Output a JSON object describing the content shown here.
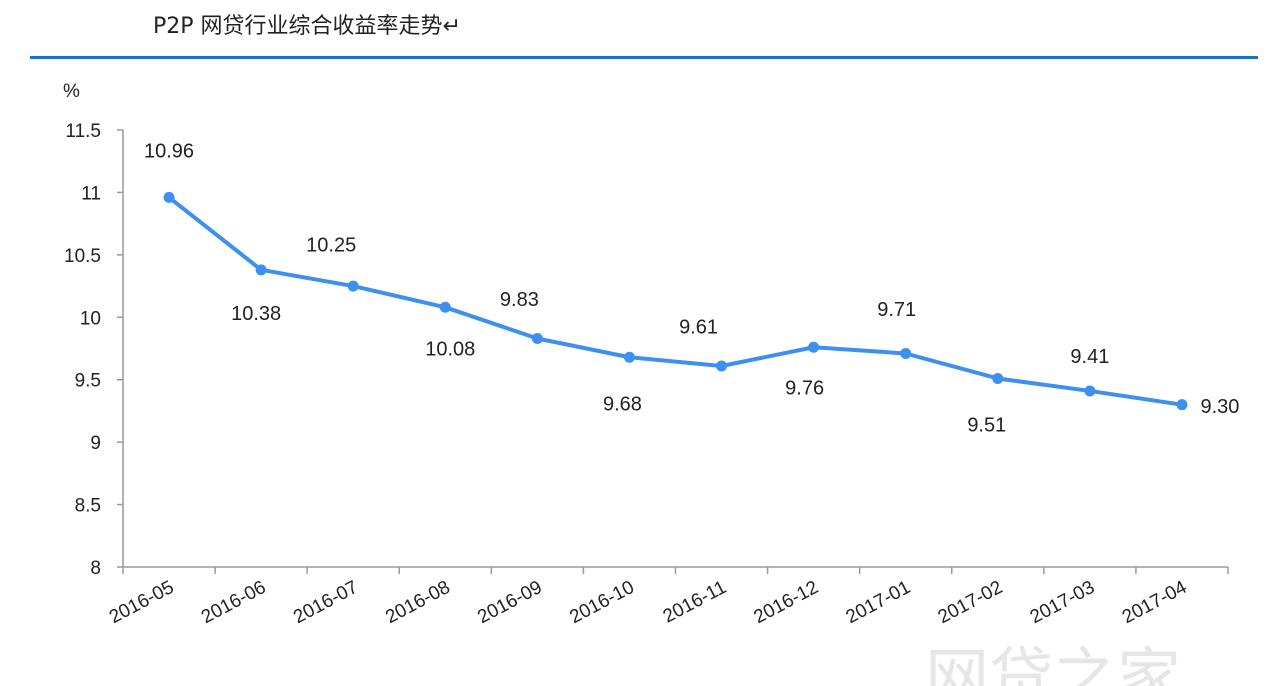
{
  "header": {
    "title": "P2P 网贷行业综合收益率走势↵"
  },
  "watermark": "网贷之家",
  "chart_data": {
    "type": "line",
    "title": "P2P 网贷行业综合收益率走势",
    "ylabel": "%",
    "xlabel": "",
    "categories": [
      "2016-05",
      "2016-06",
      "2016-07",
      "2016-08",
      "2016-09",
      "2016-10",
      "2016-11",
      "2016-12",
      "2017-01",
      "2017-02",
      "2017-03",
      "2017-04"
    ],
    "values": [
      10.96,
      10.38,
      10.25,
      10.08,
      9.83,
      9.68,
      9.61,
      9.76,
      9.71,
      9.51,
      9.41,
      9.3
    ],
    "data_labels": [
      "10.96",
      "10.38",
      "10.25",
      "10.08",
      "9.83",
      "9.68",
      "9.61",
      "9.76",
      "9.71",
      "9.51",
      "9.41",
      "9.30"
    ],
    "ylim": [
      8,
      11.5
    ],
    "yticks": [
      "8",
      "8.5",
      "9",
      "9.5",
      "10",
      "10.5",
      "11",
      "11.5"
    ],
    "grid": false,
    "legend": "none",
    "line_color": "#3d8ff0"
  }
}
